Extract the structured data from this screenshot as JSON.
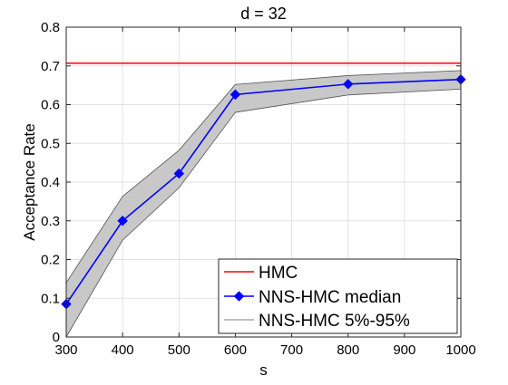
{
  "chart_data": {
    "type": "line",
    "title": "d = 32",
    "xlabel": "s",
    "ylabel": "Acceptance Rate",
    "xlim": [
      300,
      1000
    ],
    "ylim": [
      0,
      0.8
    ],
    "xticks": [
      300,
      400,
      500,
      600,
      700,
      800,
      900,
      1000
    ],
    "yticks": [
      0,
      0.1,
      0.2,
      0.3,
      0.4,
      0.5,
      0.6,
      0.7,
      0.8
    ],
    "xtick_labels": [
      "300",
      "400",
      "500",
      "600",
      "700",
      "800",
      "900",
      "1000"
    ],
    "ytick_labels": [
      "0",
      "0.1",
      "0.2",
      "0.3",
      "0.4",
      "0.5",
      "0.6",
      "0.7",
      "0.8"
    ],
    "grid": true,
    "legend_position": "bottom-right",
    "series": [
      {
        "name": "HMC",
        "kind": "hline",
        "color": "#ff0000",
        "y": 0.707
      },
      {
        "name": "NNS-HMC median",
        "kind": "line-marker",
        "color": "#0000ff",
        "marker": "diamond",
        "x": [
          300,
          400,
          500,
          600,
          800,
          1000
        ],
        "y": [
          0.085,
          0.3,
          0.422,
          0.626,
          0.653,
          0.665
        ]
      },
      {
        "name": "NNS-HMC 5%-95%",
        "kind": "band",
        "color": "#c8c8c8",
        "edge_color": "#555555",
        "x": [
          300,
          400,
          500,
          600,
          800,
          1000
        ],
        "y_low": [
          0.0,
          0.25,
          0.385,
          0.58,
          0.625,
          0.64
        ],
        "y_high": [
          0.14,
          0.363,
          0.482,
          0.652,
          0.675,
          0.688
        ]
      }
    ]
  }
}
